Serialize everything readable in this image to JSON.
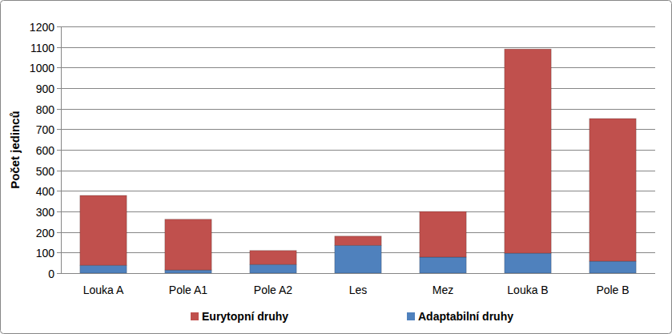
{
  "chart_data": {
    "type": "bar",
    "stacked": true,
    "y_label": "Počet jedinců",
    "categories": [
      "Louka A",
      "Pole A1",
      "Pole A2",
      "Les",
      "Mez",
      "Louka B",
      "Pole B"
    ],
    "series": [
      {
        "name": "Adaptabilní druhy",
        "color": "#4f81bd",
        "values": [
          38,
          15,
          42,
          135,
          78,
          97,
          58
        ]
      },
      {
        "name": "Eurytopní druhy",
        "color": "#c0504d",
        "values": [
          340,
          247,
          68,
          45,
          222,
          993,
          694
        ]
      }
    ],
    "ylim": [
      0,
      1200
    ],
    "yticks": [
      0,
      100,
      200,
      300,
      400,
      500,
      600,
      700,
      800,
      900,
      1000,
      1100,
      1200
    ],
    "grid": true,
    "legend": "bottom"
  }
}
